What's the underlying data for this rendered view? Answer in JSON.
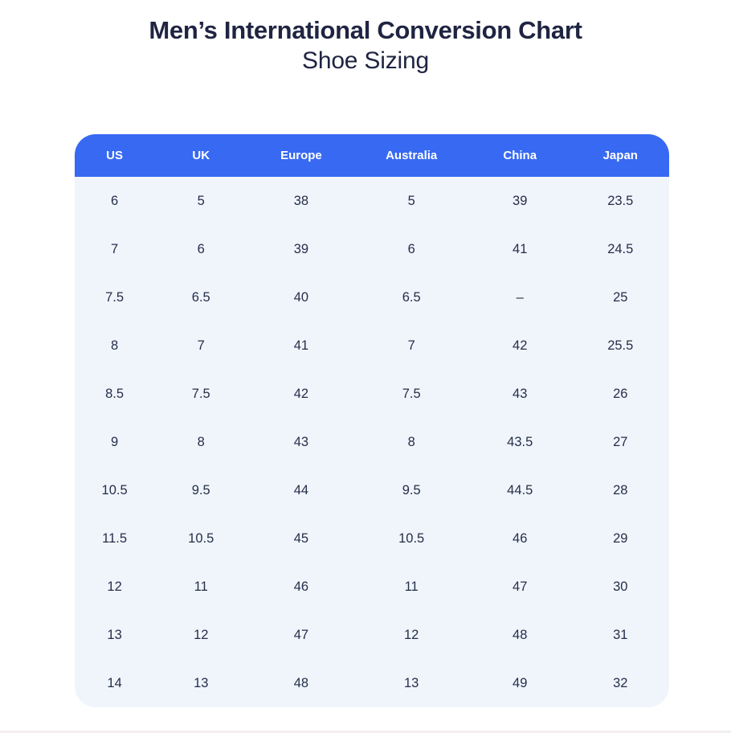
{
  "page": {
    "title": "Men’s International Conversion Chart",
    "subtitle": "Shoe Sizing"
  },
  "chart_data": {
    "type": "table",
    "title": "Men’s International Conversion Chart",
    "subtitle": "Shoe Sizing",
    "columns": [
      "US",
      "UK",
      "Europe",
      "Australia",
      "China",
      "Japan"
    ],
    "rows": [
      [
        "6",
        "5",
        "38",
        "5",
        "39",
        "23.5"
      ],
      [
        "7",
        "6",
        "39",
        "6",
        "41",
        "24.5"
      ],
      [
        "7.5",
        "6.5",
        "40",
        "6.5",
        "–",
        "25"
      ],
      [
        "8",
        "7",
        "41",
        "7",
        "42",
        "25.5"
      ],
      [
        "8.5",
        "7.5",
        "42",
        "7.5",
        "43",
        "26"
      ],
      [
        "9",
        "8",
        "43",
        "8",
        "43.5",
        "27"
      ],
      [
        "10.5",
        "9.5",
        "44",
        "9.5",
        "44.5",
        "28"
      ],
      [
        "11.5",
        "10.5",
        "45",
        "10.5",
        "46",
        "29"
      ],
      [
        "12",
        "11",
        "46",
        "11",
        "47",
        "30"
      ],
      [
        "13",
        "12",
        "47",
        "12",
        "48",
        "31"
      ],
      [
        "14",
        "13",
        "48",
        "13",
        "49",
        "32"
      ]
    ]
  },
  "colors": {
    "header_bg": "#3769F2",
    "body_bg": "#F0F5FC",
    "header_text": "#FFFFFF",
    "cell_text": "#242E49",
    "title_text": "#1F2442"
  }
}
